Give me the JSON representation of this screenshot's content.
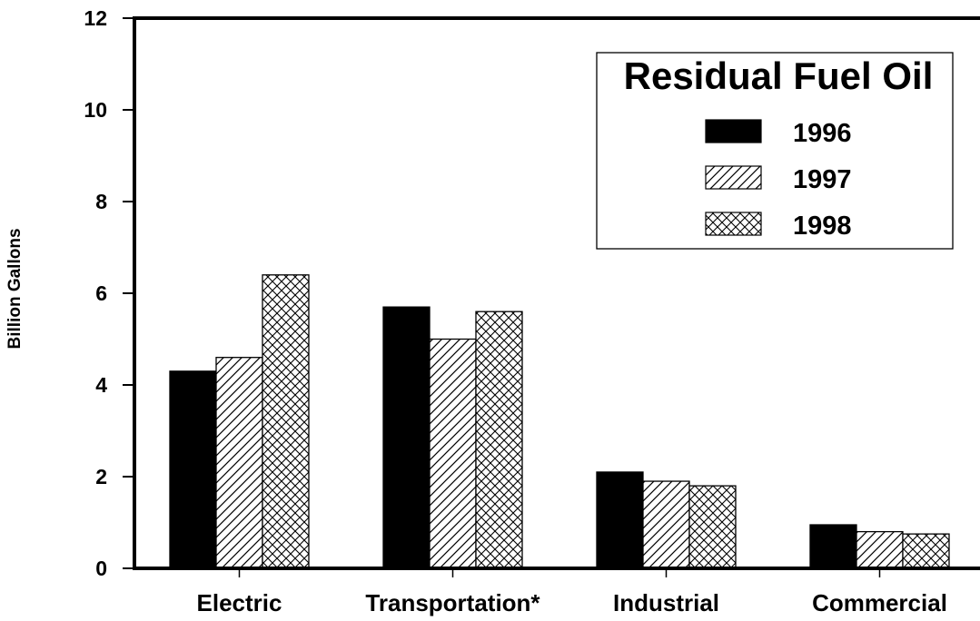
{
  "chart_data": {
    "type": "bar",
    "title": "",
    "xlabel": "",
    "ylabel": "Billion Gallons",
    "ylim": [
      0,
      12
    ],
    "yticks": [
      0,
      2,
      4,
      6,
      8,
      10,
      12
    ],
    "categories": [
      "Electric",
      "Transportation*",
      "Industrial",
      "Commercial"
    ],
    "series": [
      {
        "name": "1996",
        "pattern": "solid",
        "values": [
          4.3,
          5.7,
          2.1,
          0.95
        ]
      },
      {
        "name": "1997",
        "pattern": "diagonal-hatch",
        "values": [
          4.6,
          5.0,
          1.9,
          0.8
        ]
      },
      {
        "name": "1998",
        "pattern": "crosshatch",
        "values": [
          6.4,
          5.6,
          1.8,
          0.75
        ]
      }
    ],
    "legend": {
      "title": "Residual Fuel Oil",
      "placement": "top-right"
    },
    "grid": false,
    "colors": {
      "bar_fill": "#000000",
      "bar_outline": "#000000",
      "background": "#ffffff"
    }
  }
}
